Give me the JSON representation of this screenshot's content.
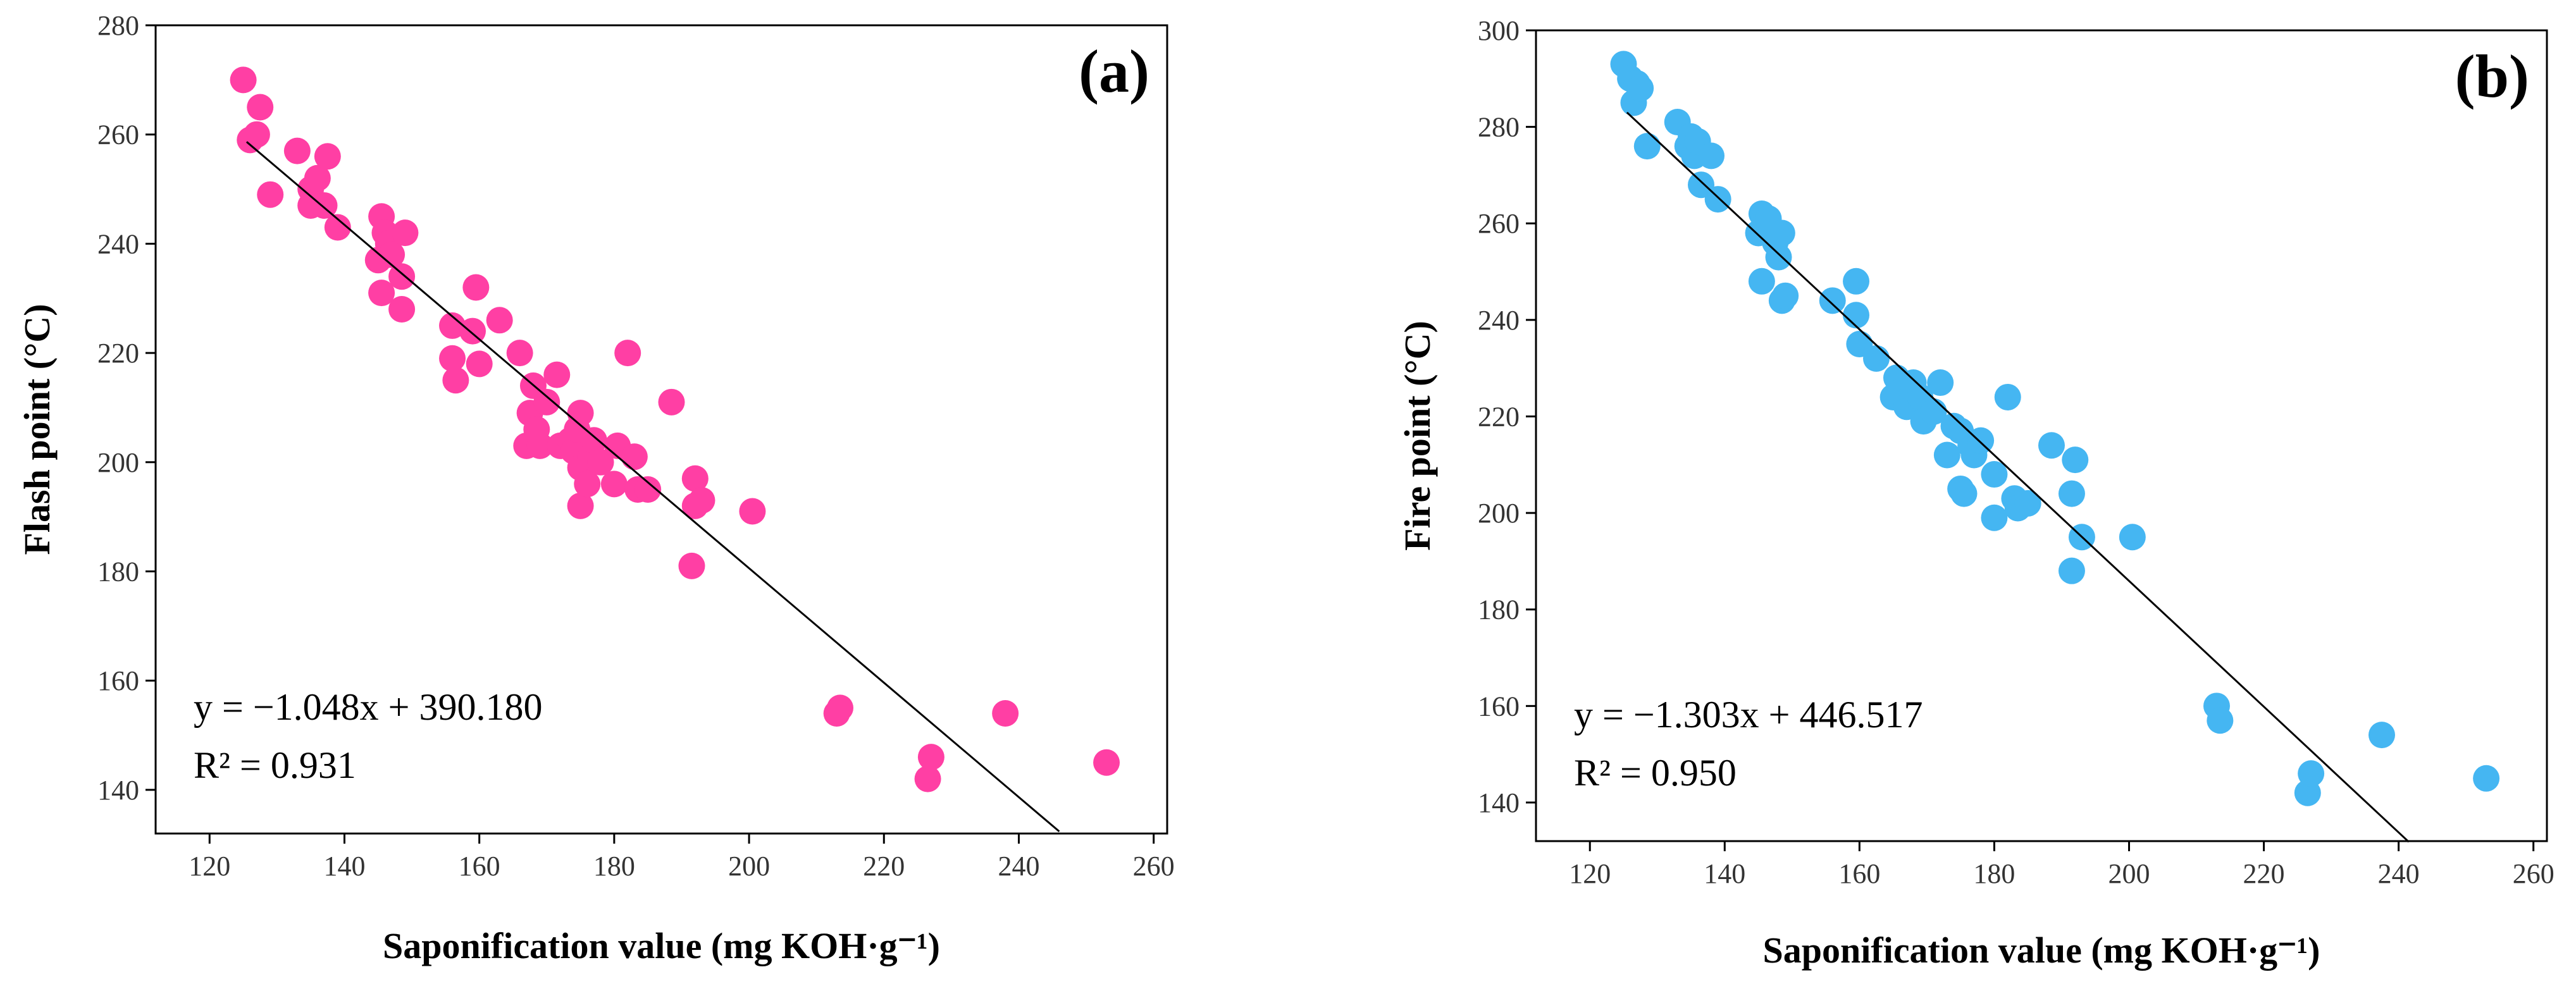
{
  "chart_data": [
    {
      "type": "scatter",
      "panel_label": "(a)",
      "xlabel": "Saponification value (mg KOH·g⁻¹)",
      "ylabel": "Flash point (°C)",
      "xlim": [
        112,
        262
      ],
      "ylim": [
        132,
        280
      ],
      "xticks": [
        120,
        140,
        160,
        180,
        200,
        220,
        240,
        260
      ],
      "yticks": [
        140,
        160,
        180,
        200,
        220,
        240,
        260,
        280
      ],
      "marker_color": "#ff3fa4",
      "equation": "y = −1.048x + 390.180",
      "r2": "R² = 0.931",
      "fit": {
        "slope": -1.048,
        "intercept": 390.18,
        "x_range": [
          125.5,
          246
        ]
      },
      "points": [
        [
          125,
          270
        ],
        [
          126,
          259
        ],
        [
          127,
          260
        ],
        [
          127.5,
          265
        ],
        [
          129,
          249
        ],
        [
          133,
          257
        ],
        [
          135,
          250
        ],
        [
          135,
          247
        ],
        [
          136,
          252
        ],
        [
          137,
          247
        ],
        [
          137.5,
          256
        ],
        [
          139,
          243
        ],
        [
          145,
          237
        ],
        [
          145.5,
          231
        ],
        [
          145.5,
          245
        ],
        [
          146,
          242
        ],
        [
          146.5,
          240
        ],
        [
          147,
          238
        ],
        [
          148.5,
          228
        ],
        [
          148.5,
          234
        ],
        [
          149,
          242
        ],
        [
          156,
          225
        ],
        [
          156,
          219
        ],
        [
          156.5,
          215
        ],
        [
          159,
          224
        ],
        [
          159.5,
          232
        ],
        [
          160,
          218
        ],
        [
          163,
          226
        ],
        [
          166,
          220
        ],
        [
          167,
          203
        ],
        [
          167.5,
          209
        ],
        [
          168,
          214
        ],
        [
          168.5,
          206
        ],
        [
          169,
          203
        ],
        [
          170,
          211
        ],
        [
          171.5,
          216
        ],
        [
          172,
          203
        ],
        [
          173.5,
          204
        ],
        [
          174,
          202
        ],
        [
          174.5,
          206
        ],
        [
          175,
          199
        ],
        [
          175,
          192
        ],
        [
          175,
          209
        ],
        [
          176,
          196
        ],
        [
          176.5,
          201
        ],
        [
          177,
          204
        ],
        [
          178,
          200
        ],
        [
          180,
          196
        ],
        [
          180.5,
          203
        ],
        [
          182,
          220
        ],
        [
          183,
          201
        ],
        [
          183.5,
          195
        ],
        [
          185,
          195
        ],
        [
          188.5,
          211
        ],
        [
          191.5,
          181
        ],
        [
          192,
          197
        ],
        [
          192,
          192
        ],
        [
          193,
          193
        ],
        [
          200.5,
          191
        ],
        [
          213,
          154
        ],
        [
          213.5,
          155
        ],
        [
          226.5,
          142
        ],
        [
          227,
          146
        ],
        [
          238,
          154
        ],
        [
          253,
          145
        ]
      ]
    },
    {
      "type": "scatter",
      "panel_label": "(b)",
      "xlabel": "Saponification value (mg KOH·g⁻¹)",
      "ylabel": "Fire point (°C)",
      "xlim": [
        112,
        262
      ],
      "ylim": [
        132,
        300
      ],
      "xticks": [
        120,
        140,
        160,
        180,
        200,
        220,
        240,
        260
      ],
      "yticks": [
        140,
        160,
        180,
        200,
        220,
        240,
        260,
        280,
        300
      ],
      "marker_color": "#45b6f2",
      "equation": "y = −1.303x + 446.517",
      "r2": "R² = 0.950",
      "fit": {
        "slope": -1.303,
        "intercept": 446.517,
        "x_range": [
          125.5,
          241.5
        ]
      },
      "points": [
        [
          125,
          293
        ],
        [
          126,
          290
        ],
        [
          126.5,
          285
        ],
        [
          127,
          289
        ],
        [
          127.5,
          288
        ],
        [
          128.5,
          276
        ],
        [
          133,
          281
        ],
        [
          134.5,
          276
        ],
        [
          135,
          278
        ],
        [
          135.5,
          274
        ],
        [
          136,
          277
        ],
        [
          136.5,
          268
        ],
        [
          138,
          274
        ],
        [
          139,
          265
        ],
        [
          145,
          258
        ],
        [
          145.5,
          248
        ],
        [
          145.5,
          262
        ],
        [
          146,
          260
        ],
        [
          146.5,
          261
        ],
        [
          147.5,
          256
        ],
        [
          148,
          253
        ],
        [
          148.5,
          258
        ],
        [
          148.5,
          244
        ],
        [
          149,
          245
        ],
        [
          156,
          244
        ],
        [
          159.5,
          248
        ],
        [
          159.5,
          241
        ],
        [
          160,
          235
        ],
        [
          162.5,
          232
        ],
        [
          165,
          224
        ],
        [
          165.5,
          228
        ],
        [
          166,
          225
        ],
        [
          167,
          222
        ],
        [
          167.5,
          226
        ],
        [
          168,
          227
        ],
        [
          169,
          224
        ],
        [
          169.5,
          219
        ],
        [
          171,
          221
        ],
        [
          172,
          227
        ],
        [
          173,
          212
        ],
        [
          174,
          218
        ],
        [
          175,
          205
        ],
        [
          175,
          217
        ],
        [
          175.5,
          204
        ],
        [
          176.5,
          214
        ],
        [
          177,
          212
        ],
        [
          178,
          215
        ],
        [
          180,
          208
        ],
        [
          180,
          199
        ],
        [
          182,
          224
        ],
        [
          183,
          203
        ],
        [
          183.5,
          201
        ],
        [
          185,
          202
        ],
        [
          188.5,
          214
        ],
        [
          191.5,
          204
        ],
        [
          191.5,
          188
        ],
        [
          192,
          211
        ],
        [
          193,
          195
        ],
        [
          200.5,
          195
        ],
        [
          213,
          160
        ],
        [
          213.5,
          157
        ],
        [
          226.5,
          142
        ],
        [
          227,
          146
        ],
        [
          237.5,
          154
        ],
        [
          253,
          145
        ]
      ]
    }
  ]
}
